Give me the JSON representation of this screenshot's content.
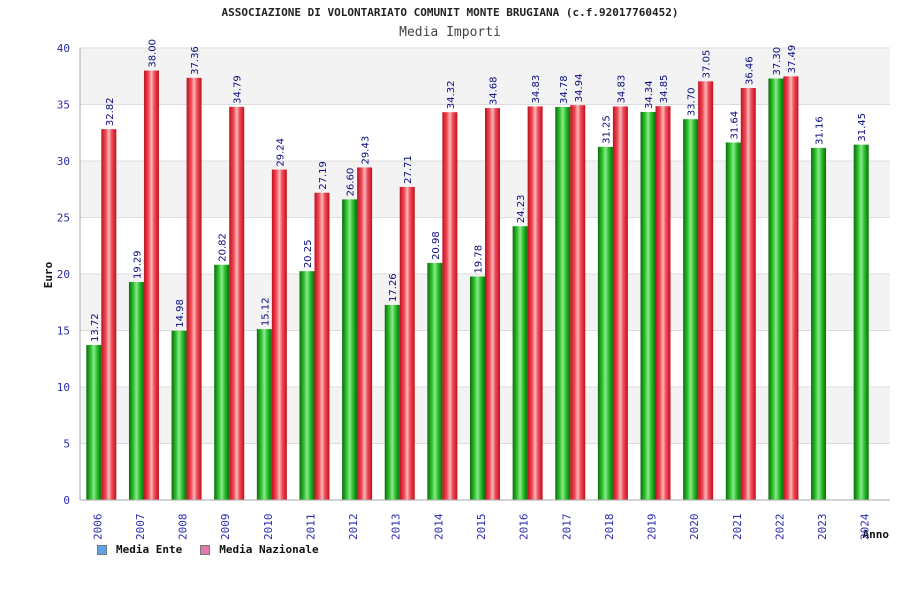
{
  "chart_data": {
    "type": "bar",
    "title": "ASSOCIAZIONE DI VOLONTARIATO COMUNIT MONTE BRUGIANA (c.f.92017760452)",
    "subtitle": "Media Importi",
    "xlabel": "Anno",
    "ylabel": "Euro",
    "ylim": [
      0,
      40
    ],
    "yticks": [
      "0",
      "5",
      "10",
      "15",
      "20",
      "25",
      "30",
      "35",
      "40"
    ],
    "grid": true,
    "legend_position": "bottom-left",
    "categories": [
      "2006",
      "2007",
      "2008",
      "2009",
      "2010",
      "2011",
      "2012",
      "2013",
      "2014",
      "2015",
      "2016",
      "2017",
      "2018",
      "2019",
      "2020",
      "2021",
      "2022",
      "2023",
      "2024"
    ],
    "series": [
      {
        "name": "Media Ente",
        "bar_color": "#1aa01a",
        "legend_color": "#5ea3e8",
        "values": [
          13.72,
          19.29,
          14.98,
          20.82,
          15.12,
          20.25,
          26.6,
          17.26,
          20.98,
          19.78,
          24.23,
          34.78,
          31.25,
          34.34,
          33.7,
          31.64,
          37.3,
          31.16,
          31.45
        ],
        "labels": [
          "13.72",
          "19.29",
          "14.98",
          "20.82",
          "15.12",
          "20.25",
          "26.60",
          "17.26",
          "20.98",
          "19.78",
          "24.23",
          "34.78",
          "31.25",
          "34.34",
          "33.70",
          "31.64",
          "37.30",
          "31.16",
          "31.45"
        ]
      },
      {
        "name": "Media Nazionale",
        "bar_color": "#e8323c",
        "legend_color": "#e07ab0",
        "values": [
          32.82,
          38.0,
          37.36,
          34.79,
          29.24,
          27.19,
          29.43,
          27.71,
          34.32,
          34.68,
          34.83,
          34.94,
          34.83,
          34.85,
          37.05,
          36.46,
          37.49,
          null,
          null
        ],
        "labels": [
          "32.82",
          "38.00",
          "37.36",
          "34.79",
          "29.24",
          "27.19",
          "29.43",
          "27.71",
          "34.32",
          "34.68",
          "34.83",
          "34.94",
          "34.83",
          "34.85",
          "37.05",
          "36.46",
          "37.49",
          "",
          ""
        ]
      }
    ]
  }
}
